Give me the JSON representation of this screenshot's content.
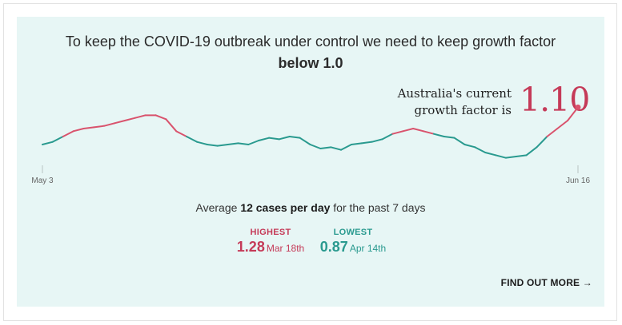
{
  "headline": {
    "line1": "To keep the COVID-19 outbreak under control we need to keep growth factor",
    "line2": "below 1.0"
  },
  "current": {
    "label_line1": "Australia's current",
    "label_line2": "growth factor is",
    "value": "1.10"
  },
  "average": {
    "prefix": "Average",
    "bold": "12 cases per day",
    "suffix": "for the past 7 days"
  },
  "highest": {
    "label": "HIGHEST",
    "value": "1.28",
    "date": "Mar 18th"
  },
  "lowest": {
    "label": "LOWEST",
    "value": "0.87",
    "date": "Apr 14th"
  },
  "link": {
    "label": "FIND OUT MORE →"
  },
  "colors": {
    "above": "#d9536d",
    "below": "#2a9a8f",
    "background": "#e7f6f5",
    "accent": "#c53a58"
  },
  "chart_data": {
    "type": "line",
    "x_start_label": "May 3",
    "x_end_label": "Jun 16",
    "threshold": 1.0,
    "ylim": [
      0.9,
      1.2
    ],
    "values": [
      0.96,
      0.97,
      0.99,
      1.01,
      1.02,
      1.025,
      1.03,
      1.04,
      1.05,
      1.06,
      1.07,
      1.07,
      1.055,
      1.01,
      0.99,
      0.97,
      0.96,
      0.955,
      0.96,
      0.965,
      0.96,
      0.975,
      0.985,
      0.98,
      0.99,
      0.985,
      0.96,
      0.945,
      0.95,
      0.94,
      0.96,
      0.965,
      0.97,
      0.98,
      1.0,
      1.01,
      1.02,
      1.01,
      1.0,
      0.99,
      0.985,
      0.96,
      0.95,
      0.93,
      0.92,
      0.91,
      0.915,
      0.92,
      0.95,
      0.99,
      1.02,
      1.05,
      1.1
    ]
  }
}
